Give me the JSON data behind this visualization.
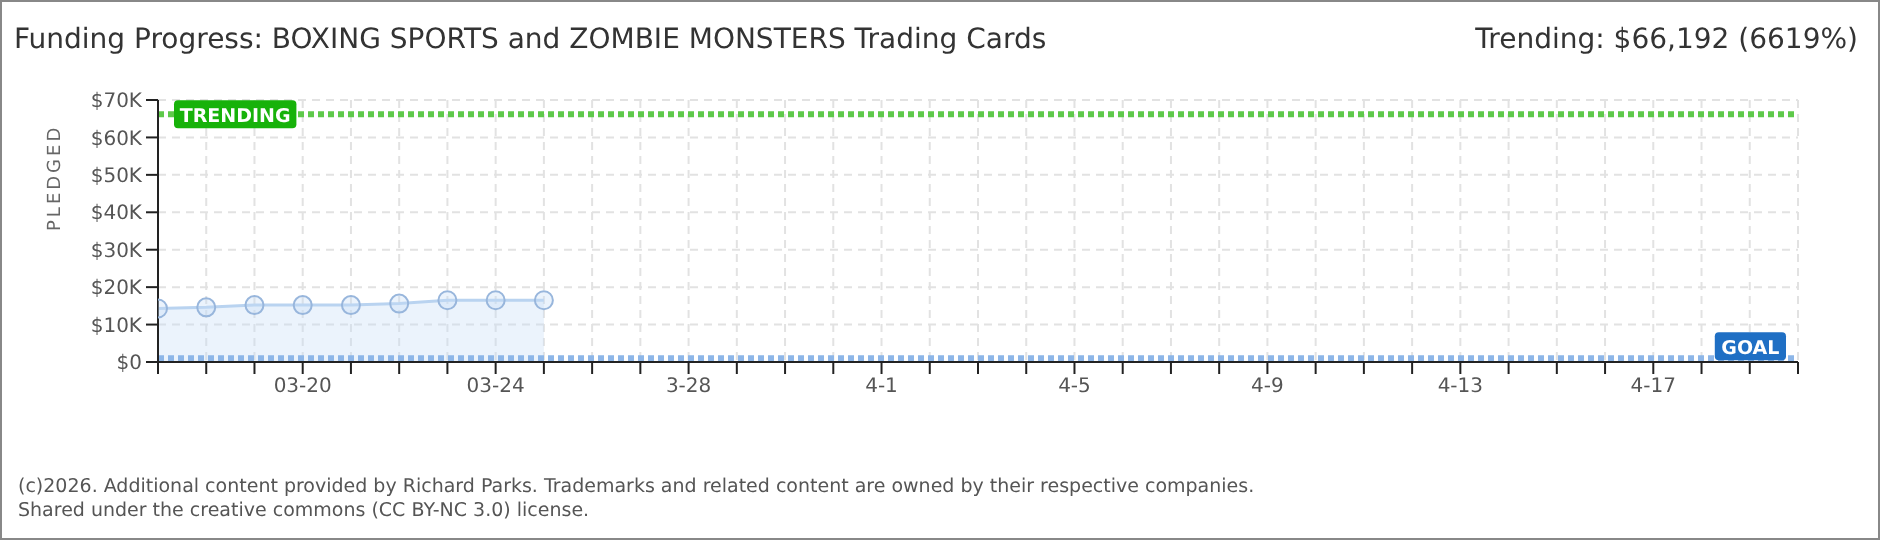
{
  "chart_data": {
    "type": "area",
    "title": "Funding Progress: BOXING SPORTS and ZOMBIE MONSTERS Trading Cards",
    "subtitle": "Trending: $66,192 (6619%)",
    "ylabel": "PLEDGED",
    "categories": [
      null,
      null,
      null,
      "03-20",
      null,
      null,
      null,
      "03-24",
      null,
      null,
      null,
      "3-28",
      null,
      null,
      null,
      "4-1",
      null,
      null,
      null,
      "4-5",
      null,
      null,
      null,
      "4-9",
      null,
      null,
      null,
      "4-13",
      null,
      null,
      null,
      "4-17",
      null,
      null,
      null
    ],
    "series": [
      {
        "color": "#c6dcf5",
        "values": [
          14300,
          14600,
          15200,
          15200,
          15200,
          15600,
          16500,
          16500,
          16500,
          null,
          null,
          null,
          null,
          null,
          null,
          null,
          null,
          null,
          null,
          null,
          null,
          null,
          null,
          null,
          null,
          null,
          null,
          null,
          null,
          null,
          null,
          null,
          null,
          null,
          null
        ]
      }
    ],
    "ylim": [
      0,
      70000
    ],
    "yticks": [
      {
        "value": 0,
        "label": "$0"
      },
      {
        "value": 10000,
        "label": "$10K"
      },
      {
        "value": 20000,
        "label": "$20K"
      },
      {
        "value": 30000,
        "label": "$30K"
      },
      {
        "value": 40000,
        "label": "$40K"
      },
      {
        "value": 50000,
        "label": "$50K"
      },
      {
        "value": 60000,
        "label": "$60K"
      },
      {
        "value": 70000,
        "label": "$70K"
      }
    ],
    "ref_lines": [
      {
        "axis": "y",
        "value": 66192,
        "label": "TRENDING",
        "color": "#5ec94a",
        "line_style": "dotted"
      },
      {
        "axis": "y",
        "value": 1000,
        "label": "GOAL",
        "color": "#8db6e8",
        "line_style": "dotted"
      }
    ],
    "grid": true,
    "marker": "circle",
    "annotations": [
      "(c)2026. Additional content provided by Richard Parks. Trademarks and related content are owned by their respective companies.",
      "Shared under the creative commons (CC BY-NC 3.0) license."
    ]
  }
}
